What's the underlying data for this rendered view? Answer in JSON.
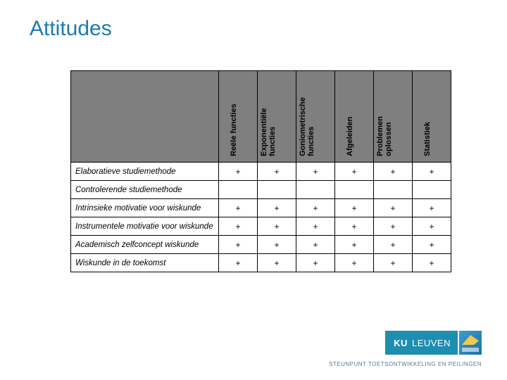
{
  "title": "Attitudes",
  "columns": [
    "Reële functies",
    "Exponentiële\nfuncties",
    "Goniometrische\nfuncties",
    "Afgeleiden",
    "Problemen\noplossen",
    "Statistiek"
  ],
  "rows": [
    {
      "label": "Elaboratieve studiemethode",
      "cells": [
        "+",
        "+",
        "+",
        "+",
        "+",
        "+"
      ]
    },
    {
      "label": "Controlerende studiemethode",
      "cells": [
        "",
        "",
        "",
        "",
        "",
        ""
      ]
    },
    {
      "label": "Intrinsieke motivatie voor wiskunde",
      "cells": [
        "+",
        "+",
        "+",
        "+",
        "+",
        "+"
      ]
    },
    {
      "label": "Instrumentele motivatie voor wiskunde",
      "cells": [
        "+",
        "+",
        "+",
        "+",
        "+",
        "+"
      ]
    },
    {
      "label": "Academisch zelfconcept wiskunde",
      "cells": [
        "+",
        "+",
        "+",
        "+",
        "+",
        "+"
      ]
    },
    {
      "label": "Wiskunde in de toekomst",
      "cells": [
        "+",
        "+",
        "+",
        "+",
        "+",
        "+"
      ]
    }
  ],
  "logo": {
    "ku": "KU",
    "leuven": "LEUVEN"
  },
  "footer": "STEUNPUNT TOETSONTWIKKELING EN PEILINGEN",
  "colors": {
    "title": "#1a7ab5",
    "header_bg": "#7f7f7f",
    "logo_bg": "#1d8db0",
    "footer_text": "#5a7a8a"
  }
}
